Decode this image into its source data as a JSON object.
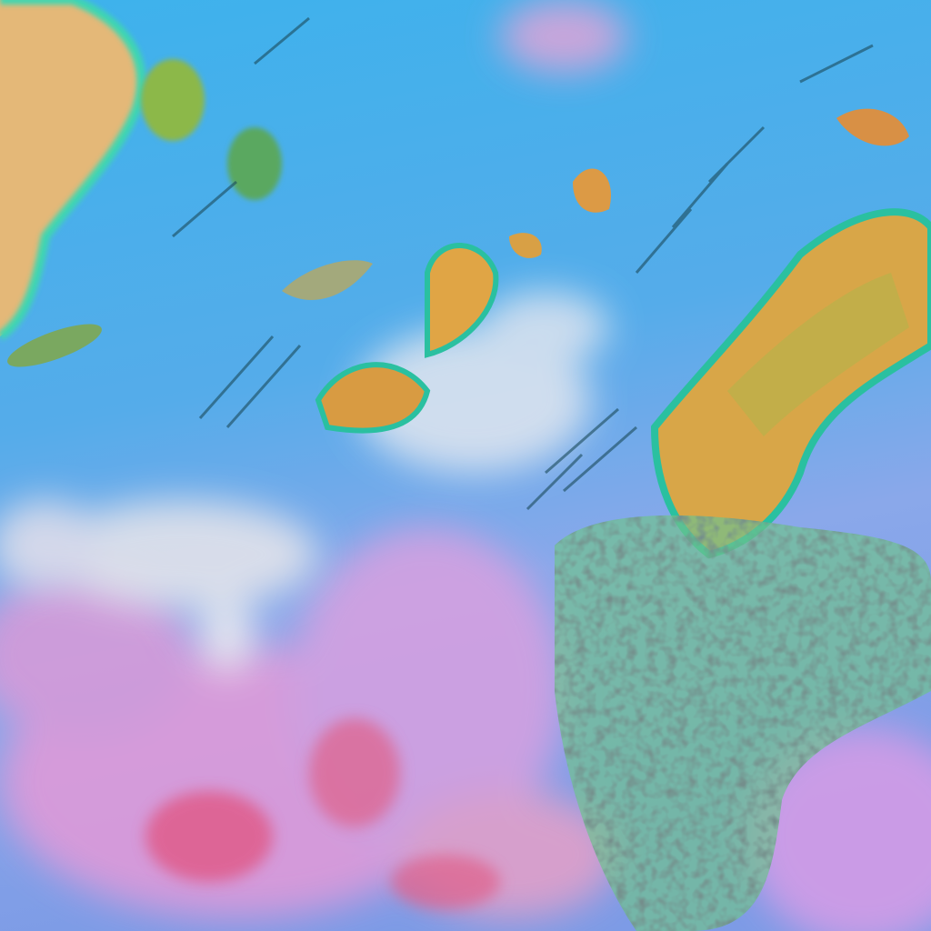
{
  "image": {
    "kind": "false-color satellite cloud imagery",
    "colors": {
      "ocean_blue": "#3fb0ea",
      "haze_pink": "#e49ad6",
      "haze_lavender": "#9ab0ec",
      "thin_cloud_white": "#dfe4ef",
      "high_cloud_orange": "#e0a545",
      "cloud_yellow_green": "#b8b24a",
      "cloud_edge_cyan": "#3fd6b0",
      "cloud_edge_dark": "#1a3a5a",
      "land_tan": "#e4b878",
      "red_patches": "#e2507a"
    }
  }
}
